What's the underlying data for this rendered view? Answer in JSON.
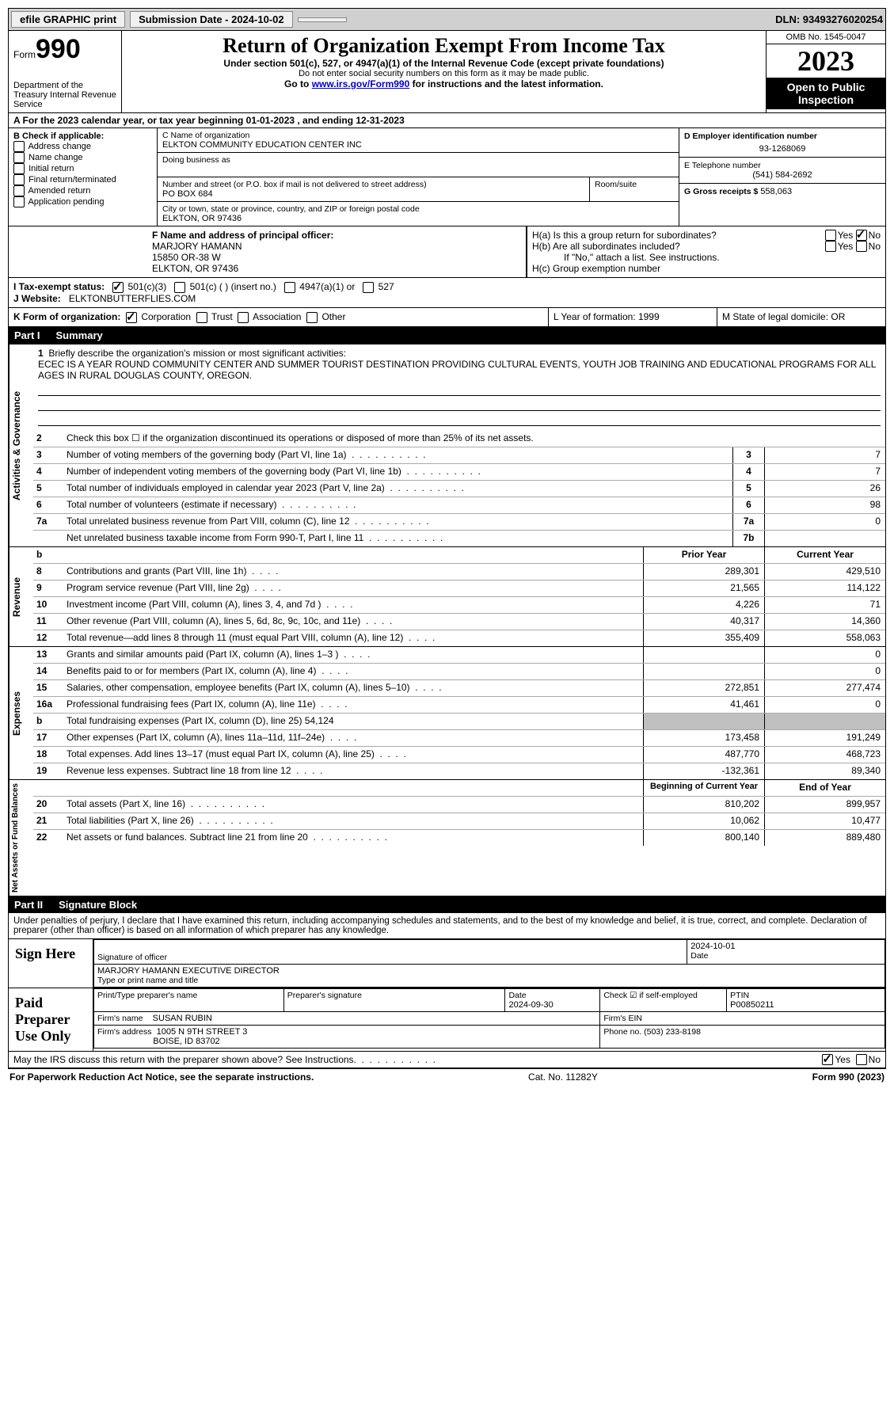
{
  "topbar": {
    "efile": "efile GRAPHIC print",
    "submission_date_label": "Submission Date - 2024-10-02",
    "dln": "DLN: 93493276020254"
  },
  "header": {
    "form_label": "Form",
    "form_number": "990",
    "dept": "Department of the Treasury Internal Revenue Service",
    "title": "Return of Organization Exempt From Income Tax",
    "subtitle": "Under section 501(c), 527, or 4947(a)(1) of the Internal Revenue Code (except private foundations)",
    "note1": "Do not enter social security numbers on this form as it may be made public.",
    "note2_pre": "Go to ",
    "note2_link": "www.irs.gov/Form990",
    "note2_post": " for instructions and the latest information.",
    "omb": "OMB No. 1545-0047",
    "year": "2023",
    "open": "Open to Public Inspection"
  },
  "row_a": "A For the 2023 calendar year, or tax year beginning 01-01-2023    , and ending 12-31-2023",
  "section_b": {
    "label": "B Check if applicable:",
    "items": [
      "Address change",
      "Name change",
      "Initial return",
      "Final return/terminated",
      "Amended return",
      "Application pending"
    ]
  },
  "section_c": {
    "name_label": "C Name of organization",
    "name": "ELKTON COMMUNITY EDUCATION CENTER INC",
    "dba_label": "Doing business as",
    "street_label": "Number and street (or P.O. box if mail is not delivered to street address)",
    "street": "PO BOX 684",
    "room_label": "Room/suite",
    "city_label": "City or town, state or province, country, and ZIP or foreign postal code",
    "city": "ELKTON, OR  97436"
  },
  "section_d": {
    "label": "D Employer identification number",
    "value": "93-1268069"
  },
  "section_e": {
    "label": "E Telephone number",
    "value": "(541) 584-2692"
  },
  "section_g": {
    "label": "G Gross receipts $ ",
    "value": "558,063"
  },
  "section_f": {
    "label": "F Name and address of principal officer:",
    "name": "MARJORY HAMANN",
    "street": "15850 OR-38 W",
    "city": "ELKTON, OR  97436"
  },
  "section_h": {
    "ha": "H(a)  Is this a group return for subordinates?",
    "hb": "H(b)  Are all subordinates included?",
    "hb_note": "If \"No,\" attach a list. See instructions.",
    "hc": "H(c)  Group exemption number"
  },
  "section_i": {
    "label": "I    Tax-exempt status:",
    "options": [
      "501(c)(3)",
      "501(c) (  ) (insert no.)",
      "4947(a)(1) or",
      "527"
    ]
  },
  "section_j": {
    "label": "J    Website:",
    "value": "ELKTONBUTTERFLIES.COM"
  },
  "section_k": {
    "label": "K Form of organization:",
    "options": [
      "Corporation",
      "Trust",
      "Association",
      "Other"
    ]
  },
  "section_l": "L Year of formation: 1999",
  "section_m": "M State of legal domicile: OR",
  "part1": {
    "label": "Part I",
    "title": "Summary"
  },
  "mission": {
    "num": "1",
    "label": "Briefly describe the organization's mission or most significant activities:",
    "text": "ECEC IS A YEAR ROUND COMMUNITY CENTER AND SUMMER TOURIST DESTINATION PROVIDING CULTURAL EVENTS, YOUTH JOB TRAINING AND EDUCATIONAL PROGRAMS FOR ALL AGES IN RURAL DOUGLAS COUNTY, OREGON."
  },
  "governance_lines": [
    {
      "num": "2",
      "desc": "Check this box ☐ if the organization discontinued its operations or disposed of more than 25% of its net assets."
    },
    {
      "num": "3",
      "desc": "Number of voting members of the governing body (Part VI, line 1a)",
      "box": "3",
      "val": "7"
    },
    {
      "num": "4",
      "desc": "Number of independent voting members of the governing body (Part VI, line 1b)",
      "box": "4",
      "val": "7"
    },
    {
      "num": "5",
      "desc": "Total number of individuals employed in calendar year 2023 (Part V, line 2a)",
      "box": "5",
      "val": "26"
    },
    {
      "num": "6",
      "desc": "Total number of volunteers (estimate if necessary)",
      "box": "6",
      "val": "98"
    },
    {
      "num": "7a",
      "desc": "Total unrelated business revenue from Part VIII, column (C), line 12",
      "box": "7a",
      "val": "0"
    },
    {
      "num": "",
      "desc": "Net unrelated business taxable income from Form 990-T, Part I, line 11",
      "box": "7b",
      "val": ""
    }
  ],
  "revenue_header": {
    "prior": "Prior Year",
    "current": "Current Year"
  },
  "revenue_lines": [
    {
      "num": "8",
      "desc": "Contributions and grants (Part VIII, line 1h)",
      "prior": "289,301",
      "current": "429,510"
    },
    {
      "num": "9",
      "desc": "Program service revenue (Part VIII, line 2g)",
      "prior": "21,565",
      "current": "114,122"
    },
    {
      "num": "10",
      "desc": "Investment income (Part VIII, column (A), lines 3, 4, and 7d )",
      "prior": "4,226",
      "current": "71"
    },
    {
      "num": "11",
      "desc": "Other revenue (Part VIII, column (A), lines 5, 6d, 8c, 9c, 10c, and 11e)",
      "prior": "40,317",
      "current": "14,360"
    },
    {
      "num": "12",
      "desc": "Total revenue—add lines 8 through 11 (must equal Part VIII, column (A), line 12)",
      "prior": "355,409",
      "current": "558,063"
    }
  ],
  "expense_lines": [
    {
      "num": "13",
      "desc": "Grants and similar amounts paid (Part IX, column (A), lines 1–3 )",
      "prior": "",
      "current": "0"
    },
    {
      "num": "14",
      "desc": "Benefits paid to or for members (Part IX, column (A), line 4)",
      "prior": "",
      "current": "0"
    },
    {
      "num": "15",
      "desc": "Salaries, other compensation, employee benefits (Part IX, column (A), lines 5–10)",
      "prior": "272,851",
      "current": "277,474"
    },
    {
      "num": "16a",
      "desc": "Professional fundraising fees (Part IX, column (A), line 11e)",
      "prior": "41,461",
      "current": "0"
    },
    {
      "num": "b",
      "desc": "Total fundraising expenses (Part IX, column (D), line 25) 54,124",
      "prior": "shade",
      "current": "shade"
    },
    {
      "num": "17",
      "desc": "Other expenses (Part IX, column (A), lines 11a–11d, 11f–24e)",
      "prior": "173,458",
      "current": "191,249"
    },
    {
      "num": "18",
      "desc": "Total expenses. Add lines 13–17 (must equal Part IX, column (A), line 25)",
      "prior": "487,770",
      "current": "468,723"
    },
    {
      "num": "19",
      "desc": "Revenue less expenses. Subtract line 18 from line 12",
      "prior": "-132,361",
      "current": "89,340"
    }
  ],
  "net_header": {
    "prior": "Beginning of Current Year",
    "current": "End of Year"
  },
  "net_lines": [
    {
      "num": "20",
      "desc": "Total assets (Part X, line 16)",
      "prior": "810,202",
      "current": "899,957"
    },
    {
      "num": "21",
      "desc": "Total liabilities (Part X, line 26)",
      "prior": "10,062",
      "current": "10,477"
    },
    {
      "num": "22",
      "desc": "Net assets or fund balances. Subtract line 21 from line 20",
      "prior": "800,140",
      "current": "889,480"
    }
  ],
  "part2": {
    "label": "Part II",
    "title": "Signature Block"
  },
  "declaration": "Under penalties of perjury, I declare that I have examined this return, including accompanying schedules and statements, and to the best of my knowledge and belief, it is true, correct, and complete. Declaration of preparer (other than officer) is based on all information of which preparer has any knowledge.",
  "sign_here": {
    "label": "Sign Here",
    "sig_label": "Signature of officer",
    "date_label": "Date",
    "date": "2024-10-01",
    "officer": "MARJORY HAMANN  EXECUTIVE DIRECTOR",
    "type_label": "Type or print name and title"
  },
  "paid_prep": {
    "label": "Paid Preparer Use Only",
    "name_label": "Print/Type preparer's name",
    "sig_label": "Preparer's signature",
    "date_label": "Date",
    "date": "2024-09-30",
    "check_label": "Check ☑ if self-employed",
    "ptin_label": "PTIN",
    "ptin": "P00850211",
    "firm_name_label": "Firm's name",
    "firm_name": "SUSAN RUBIN",
    "firm_ein_label": "Firm's EIN",
    "firm_addr_label": "Firm's address",
    "firm_addr1": "1005 N 9TH STREET 3",
    "firm_addr2": "BOISE, ID  83702",
    "phone_label": "Phone no. (503) 233-8198"
  },
  "may_irs": "May the IRS discuss this return with the preparer shown above? See Instructions.",
  "footer": {
    "left": "For Paperwork Reduction Act Notice, see the separate instructions.",
    "mid": "Cat. No. 11282Y",
    "right": "Form 990 (2023)"
  },
  "side_labels": {
    "gov": "Activities & Governance",
    "rev": "Revenue",
    "exp": "Expenses",
    "net": "Net Assets or Fund Balances"
  },
  "yes": "Yes",
  "no": "No"
}
